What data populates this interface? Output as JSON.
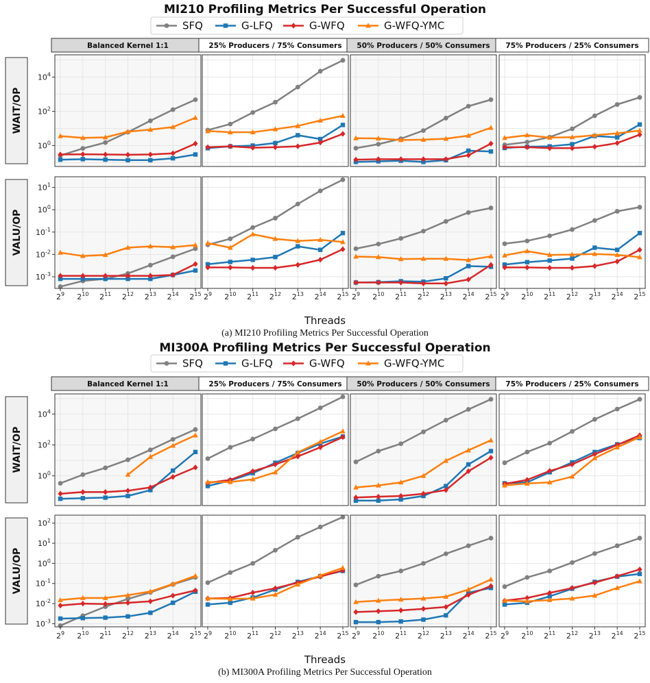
{
  "figures": [
    {
      "title": "MI210 Profiling Metrics Per Successful Operation",
      "caption": "(a) MI210 Profiling Metrics Per Successful Operation",
      "xlabel": "Threads"
    },
    {
      "title": "MI300A Profiling Metrics Per Successful Operation",
      "caption": "(b) MI300A Profiling Metrics Per Successful Operation",
      "xlabel": "Threads"
    }
  ],
  "column_titles": [
    "Balanced Kernel 1:1",
    "25% Producers / 75% Consumers",
    "50% Producers / 50% Consumers",
    "75% Producers / 25% Consumers"
  ],
  "row_labels": [
    "WAIT/OP",
    "VALU/OP"
  ],
  "legend": [
    {
      "name": "SFQ",
      "color": "#808080",
      "marker": "circle"
    },
    {
      "name": "G-LFQ",
      "color": "#1f77b4",
      "marker": "square"
    },
    {
      "name": "G-WFQ",
      "color": "#d62728",
      "marker": "diamond"
    },
    {
      "name": "G-WFQ-YMC",
      "color": "#ff7f0e",
      "marker": "triangle"
    }
  ],
  "chart_data": {
    "type": "line",
    "x": [
      9,
      10,
      11,
      12,
      13,
      14,
      15
    ],
    "x_tick_labels": [
      "2^9",
      "2^10",
      "2^11",
      "2^12",
      "2^13",
      "2^14",
      "2^15"
    ],
    "x_note": "x values are exponents of 2 (threads = 2^x)",
    "yscale": "log",
    "grid": true,
    "legend_position": "top-center",
    "series_names": [
      "SFQ",
      "G-LFQ",
      "G-WFQ",
      "G-WFQ-YMC"
    ],
    "figures": [
      {
        "title": "MI210 Profiling Metrics Per Successful Operation",
        "rows": [
          {
            "ylabel": "WAIT/OP",
            "ylim": [
              0.06,
              200000
            ],
            "yticks": [
              1,
              100,
              10000
            ],
            "panels": [
              {
                "title": "Balanced Kernel 1:1",
                "series": [
                  [
                    0.26,
                    0.68,
                    1.5,
                    6.0,
                    28,
                    125,
                    480
                  ],
                  [
                    0.15,
                    0.16,
                    0.15,
                    0.14,
                    0.14,
                    0.18,
                    0.3
                  ],
                  [
                    0.3,
                    0.31,
                    0.3,
                    0.29,
                    0.3,
                    0.35,
                    1.3
                  ],
                  [
                    3.6,
                    2.8,
                    3.0,
                    6.5,
                    8.5,
                    12,
                    42
                  ]
                ]
              },
              {
                "title": "25% Producers / 75% Consumers",
                "series": [
                  [
                    8,
                    18,
                    85,
                    340,
                    2600,
                    22000,
                    95000
                  ],
                  [
                    0.7,
                    0.9,
                    1.0,
                    1.4,
                    4.0,
                    2.4,
                    16
                  ],
                  [
                    0.8,
                    0.9,
                    0.75,
                    0.8,
                    0.9,
                    1.5,
                    4.8
                  ],
                  [
                    7,
                    6,
                    6,
                    9,
                    14,
                    29,
                    55
                  ]
                ]
              },
              {
                "title": "50% Producers / 50% Consumers",
                "series": [
                  [
                    0.7,
                    1.2,
                    2.5,
                    7.5,
                    40,
                    200,
                    480
                  ],
                  [
                    0.11,
                    0.12,
                    0.13,
                    0.11,
                    0.14,
                    0.5,
                    0.45
                  ],
                  [
                    0.15,
                    0.16,
                    0.16,
                    0.16,
                    0.16,
                    0.27,
                    1.3
                  ],
                  [
                    2.7,
                    2.6,
                    2.1,
                    2.2,
                    2.5,
                    3.8,
                    11
                  ]
                ]
              },
              {
                "title": "75% Producers / 25% Consumers",
                "series": [
                  [
                    1.1,
                    1.6,
                    3.1,
                    9.5,
                    55,
                    250,
                    650
                  ],
                  [
                    0.72,
                    0.85,
                    0.9,
                    1.2,
                    3.6,
                    3.0,
                    17
                  ],
                  [
                    0.8,
                    0.8,
                    0.7,
                    0.7,
                    0.85,
                    1.4,
                    4.3
                  ],
                  [
                    2.8,
                    4.0,
                    2.9,
                    3.1,
                    4.0,
                    5.2,
                    7.5
                  ]
                ]
              }
            ]
          },
          {
            "ylabel": "VALU/OP",
            "ylim": [
              0.0003,
              30
            ],
            "yticks": [
              0.001,
              0.01,
              0.1,
              1,
              10
            ],
            "panels": [
              {
                "title": "Balanced Kernel 1:1",
                "series": [
                  [
                    0.00036,
                    0.00065,
                    0.0008,
                    0.0014,
                    0.0033,
                    0.0078,
                    0.018
                  ],
                  [
                    0.0008,
                    0.0008,
                    0.0008,
                    0.0008,
                    0.0008,
                    0.0012,
                    0.0019
                  ],
                  [
                    0.0011,
                    0.0011,
                    0.0011,
                    0.0011,
                    0.0011,
                    0.0012,
                    0.0037
                  ],
                  [
                    0.012,
                    0.0085,
                    0.0095,
                    0.02,
                    0.023,
                    0.021,
                    0.026
                  ]
                ]
              },
              {
                "title": "25% Producers / 75% Consumers",
                "series": [
                  [
                    0.027,
                    0.05,
                    0.16,
                    0.42,
                    1.8,
                    7.0,
                    22
                  ],
                  [
                    0.0036,
                    0.0046,
                    0.0057,
                    0.0076,
                    0.023,
                    0.016,
                    0.09
                  ],
                  [
                    0.0026,
                    0.0026,
                    0.0025,
                    0.0025,
                    0.0034,
                    0.0058,
                    0.017
                  ],
                  [
                    0.032,
                    0.02,
                    0.08,
                    0.05,
                    0.04,
                    0.045,
                    0.036
                  ]
                ]
              },
              {
                "title": "50% Producers / 50% Consumers",
                "series": [
                  [
                    0.018,
                    0.029,
                    0.052,
                    0.11,
                    0.3,
                    0.75,
                    1.2
                  ],
                  [
                    0.00055,
                    0.00057,
                    0.00063,
                    0.0006,
                    0.00085,
                    0.003,
                    0.0028
                  ],
                  [
                    0.00055,
                    0.00055,
                    0.00055,
                    0.0005,
                    0.0005,
                    0.00075,
                    0.0034
                  ],
                  [
                    0.008,
                    0.0076,
                    0.0062,
                    0.0064,
                    0.0064,
                    0.0056,
                    0.0082
                  ]
                ]
              },
              {
                "title": "75% Producers / 25% Consumers",
                "series": [
                  [
                    0.03,
                    0.04,
                    0.068,
                    0.13,
                    0.33,
                    0.85,
                    1.3
                  ],
                  [
                    0.0035,
                    0.0045,
                    0.0053,
                    0.0065,
                    0.02,
                    0.016,
                    0.09
                  ],
                  [
                    0.0026,
                    0.0026,
                    0.0025,
                    0.0025,
                    0.003,
                    0.0048,
                    0.016
                  ],
                  [
                    0.009,
                    0.014,
                    0.0095,
                    0.0098,
                    0.0105,
                    0.0095,
                    0.0075
                  ]
                ]
              }
            ]
          }
        ]
      },
      {
        "title": "MI300A Profiling Metrics Per Successful Operation",
        "rows": [
          {
            "ylabel": "WAIT/OP",
            "ylim": [
              0.012,
              200000
            ],
            "yticks": [
              1,
              100,
              10000
            ],
            "panels": [
              {
                "title": "Balanced Kernel 1:1",
                "series": [
                  [
                    0.33,
                    1.2,
                    3.3,
                    11,
                    48,
                    230,
                    1000
                  ],
                  [
                    0.033,
                    0.036,
                    0.039,
                    0.05,
                    0.12,
                    2.2,
                    35
                  ],
                  [
                    0.07,
                    0.09,
                    0.09,
                    0.11,
                    0.18,
                    0.85,
                    3.5
                  ],
                  [
                    null,
                    null,
                    null,
                    1.2,
                    17,
                    90,
                    420
                  ]
                ]
              },
              {
                "title": "25% Producers / 75% Consumers",
                "series": [
                  [
                    13,
                    70,
                    240,
                    1100,
                    5000,
                    25000,
                    130000
                  ],
                  [
                    0.22,
                    0.5,
                    1.5,
                    7,
                    30,
                    120,
                    350
                  ],
                  [
                    0.35,
                    0.55,
                    2.0,
                    5.5,
                    18,
                    70,
                    320
                  ],
                  [
                    0.4,
                    0.4,
                    0.6,
                    1.7,
                    33,
                    160,
                    760
                  ]
                ]
              },
              {
                "title": "50% Producers / 50% Consumers",
                "series": [
                  [
                    8,
                    40,
                    120,
                    700,
                    4000,
                    20000,
                    90000
                  ],
                  [
                    0.025,
                    0.025,
                    0.03,
                    0.05,
                    0.22,
                    5.5,
                    40
                  ],
                  [
                    0.04,
                    0.045,
                    0.05,
                    0.07,
                    0.12,
                    2.0,
                    15
                  ],
                  [
                    0.18,
                    0.24,
                    0.38,
                    1.0,
                    9.5,
                    45,
                    200
                  ]
                ]
              },
              {
                "title": "75% Producers / 25% Consumers",
                "series": [
                  [
                    7,
                    35,
                    130,
                    750,
                    4500,
                    21000,
                    90000
                  ],
                  [
                    0.33,
                    0.38,
                    1.7,
                    7.5,
                    35,
                    110,
                    280
                  ],
                  [
                    0.3,
                    0.55,
                    2.1,
                    5.5,
                    25,
                    100,
                    420
                  ],
                  [
                    0.24,
                    0.32,
                    0.38,
                    0.9,
                    14,
                    70,
                    320
                  ]
                ]
              }
            ]
          },
          {
            "ylabel": "VALU/OP",
            "ylim": [
              0.0007,
              250
            ],
            "yticks": [
              0.001,
              0.01,
              0.1,
              1,
              10,
              100
            ],
            "panels": [
              {
                "title": "Balanced Kernel 1:1",
                "series": [
                  [
                    0.0008,
                    0.0025,
                    0.007,
                    0.017,
                    0.036,
                    0.09,
                    0.2
                  ],
                  [
                    0.0018,
                    0.0019,
                    0.002,
                    0.0023,
                    0.0035,
                    0.011,
                    0.039
                  ],
                  [
                    0.008,
                    0.01,
                    0.0095,
                    0.011,
                    0.013,
                    0.025,
                    0.045
                  ],
                  [
                    0.015,
                    0.019,
                    0.019,
                    0.026,
                    0.04,
                    0.095,
                    0.24
                  ]
                ]
              },
              {
                "title": "25% Producers / 75% Consumers",
                "series": [
                  [
                    0.11,
                    0.35,
                    1.0,
                    4.5,
                    20,
                    65,
                    200
                  ],
                  [
                    0.009,
                    0.011,
                    0.02,
                    0.05,
                    0.12,
                    0.23,
                    0.42
                  ],
                  [
                    0.018,
                    0.019,
                    0.035,
                    0.058,
                    0.11,
                    0.22,
                    0.45
                  ],
                  [
                    0.018,
                    0.017,
                    0.018,
                    0.028,
                    0.09,
                    0.25,
                    0.6
                  ]
                ]
              },
              {
                "title": "50% Producers / 50% Consumers",
                "series": [
                  [
                    0.085,
                    0.23,
                    0.42,
                    1.0,
                    3.0,
                    7.5,
                    18
                  ],
                  [
                    0.0012,
                    0.0012,
                    0.0013,
                    0.0016,
                    0.0026,
                    0.035,
                    0.06
                  ],
                  [
                    0.0038,
                    0.0042,
                    0.0046,
                    0.0055,
                    0.0068,
                    0.027,
                    0.075
                  ],
                  [
                    0.012,
                    0.014,
                    0.016,
                    0.018,
                    0.022,
                    0.05,
                    0.16
                  ]
                ]
              },
              {
                "title": "75% Producers / 25% Consumers",
                "series": [
                  [
                    0.07,
                    0.2,
                    0.42,
                    1.1,
                    3.1,
                    7.5,
                    18
                  ],
                  [
                    0.009,
                    0.011,
                    0.023,
                    0.055,
                    0.12,
                    0.22,
                    0.3
                  ],
                  [
                    0.014,
                    0.019,
                    0.034,
                    0.06,
                    0.11,
                    0.23,
                    0.5
                  ],
                  [
                    0.014,
                    0.013,
                    0.015,
                    0.018,
                    0.025,
                    0.06,
                    0.13
                  ]
                ]
              }
            ]
          }
        ]
      }
    ]
  }
}
